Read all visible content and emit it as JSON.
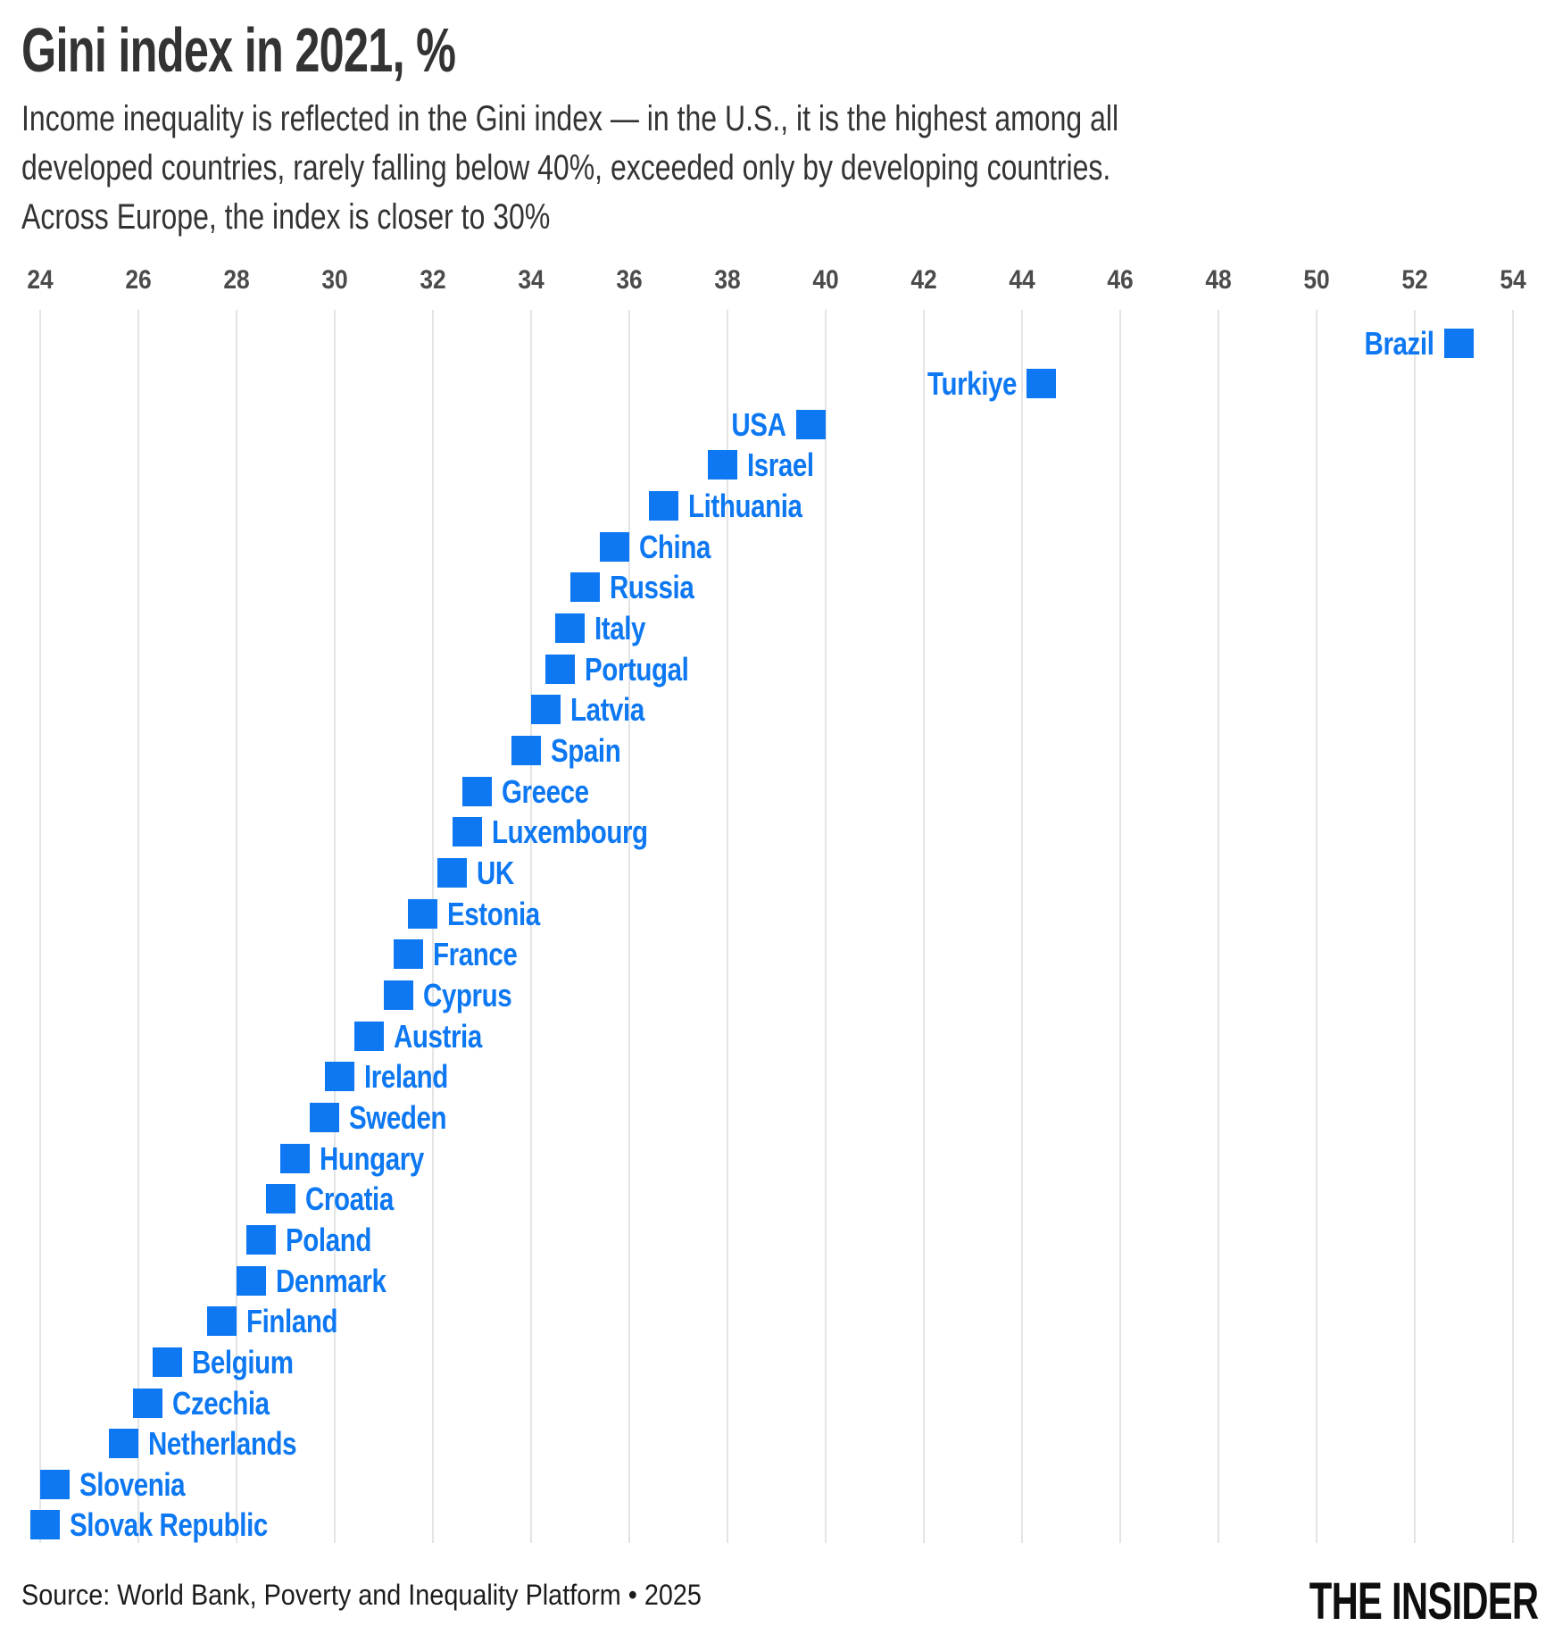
{
  "header": {
    "title": "Gini index in 2021, %",
    "subtitle_lines": [
      "Income inequality is reflected in the Gini index — in the U.S., it is the highest among all",
      "developed countries, rarely falling below 40%, exceeded only by developing countries.",
      "Across Europe, the index is closer to 30%"
    ]
  },
  "chart_data": {
    "type": "scatter",
    "title": "Gini index in 2021, %",
    "marker": "square",
    "grid": true,
    "axis": {
      "orientation": "horizontal-top",
      "min": 24,
      "max": 54,
      "step": 2,
      "tick_labels": [
        "24",
        "26",
        "28",
        "30",
        "32",
        "34",
        "36",
        "38",
        "40",
        "42",
        "44",
        "46",
        "48",
        "50",
        "52",
        "54"
      ]
    },
    "points": [
      {
        "country": "Brazil",
        "value": 52.9,
        "label_side": "left"
      },
      {
        "country": "Turkiye",
        "value": 44.4,
        "label_side": "left"
      },
      {
        "country": "USA",
        "value": 39.7,
        "label_side": "left"
      },
      {
        "country": "Israel",
        "value": 37.9,
        "label_side": "right"
      },
      {
        "country": "Lithuania",
        "value": 36.7,
        "label_side": "right"
      },
      {
        "country": "China",
        "value": 35.7,
        "label_side": "right"
      },
      {
        "country": "Russia",
        "value": 35.1,
        "label_side": "right"
      },
      {
        "country": "Italy",
        "value": 34.8,
        "label_side": "right"
      },
      {
        "country": "Portugal",
        "value": 34.6,
        "label_side": "right"
      },
      {
        "country": "Latvia",
        "value": 34.3,
        "label_side": "right"
      },
      {
        "country": "Spain",
        "value": 33.9,
        "label_side": "right"
      },
      {
        "country": "Greece",
        "value": 32.9,
        "label_side": "right"
      },
      {
        "country": "Luxembourg",
        "value": 32.7,
        "label_side": "right"
      },
      {
        "country": "UK",
        "value": 32.4,
        "label_side": "right"
      },
      {
        "country": "Estonia",
        "value": 31.8,
        "label_side": "right"
      },
      {
        "country": "France",
        "value": 31.5,
        "label_side": "right"
      },
      {
        "country": "Cyprus",
        "value": 31.3,
        "label_side": "right"
      },
      {
        "country": "Austria",
        "value": 30.7,
        "label_side": "right"
      },
      {
        "country": "Ireland",
        "value": 30.1,
        "label_side": "right"
      },
      {
        "country": "Sweden",
        "value": 29.8,
        "label_side": "right"
      },
      {
        "country": "Hungary",
        "value": 29.2,
        "label_side": "right"
      },
      {
        "country": "Croatia",
        "value": 28.9,
        "label_side": "right"
      },
      {
        "country": "Poland",
        "value": 28.5,
        "label_side": "right"
      },
      {
        "country": "Denmark",
        "value": 28.3,
        "label_side": "right"
      },
      {
        "country": "Finland",
        "value": 27.7,
        "label_side": "right"
      },
      {
        "country": "Belgium",
        "value": 26.6,
        "label_side": "right"
      },
      {
        "country": "Czechia",
        "value": 26.2,
        "label_side": "right"
      },
      {
        "country": "Netherlands",
        "value": 25.7,
        "label_side": "right"
      },
      {
        "country": "Slovenia",
        "value": 24.3,
        "label_side": "right"
      },
      {
        "country": "Slovak Republic",
        "value": 24.1,
        "label_side": "right"
      }
    ]
  },
  "footer": {
    "source": "Source: World Bank, Poverty and Inequality Platform • 2025",
    "logo": "THE INSIDER"
  },
  "colors": {
    "accent_blue": "#0d78f2",
    "grid": "#e4e4e4",
    "tick": "#4b4b4b",
    "text": "#333333"
  }
}
